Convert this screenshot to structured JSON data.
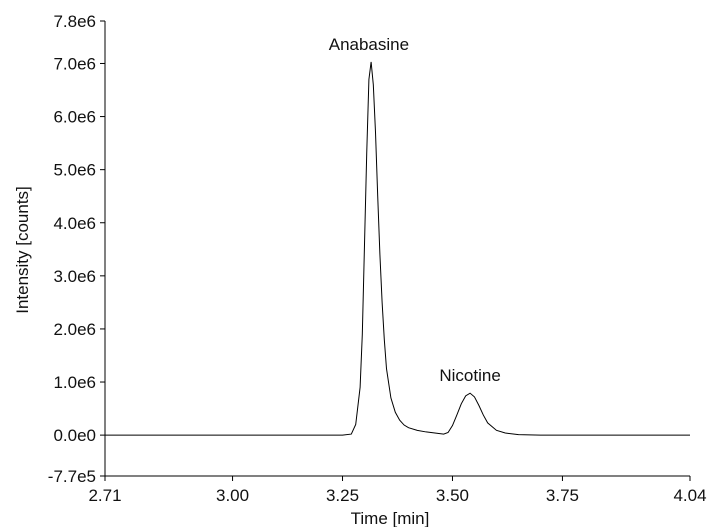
{
  "chart_data": {
    "type": "line",
    "title": "",
    "xlabel": "Time [min]",
    "ylabel": "Intensity [counts]",
    "xlim": [
      2.71,
      4.04
    ],
    "ylim": [
      -770000,
      7800000
    ],
    "xticks": [
      2.71,
      3.0,
      3.25,
      3.5,
      3.75,
      4.04
    ],
    "xtick_labels": [
      "2.71",
      "3.00",
      "3.25",
      "3.50",
      "3.75",
      "4.04"
    ],
    "yticks": [
      -770000,
      0,
      1000000,
      2000000,
      3000000,
      4000000,
      5000000,
      6000000,
      7000000,
      7800000
    ],
    "ytick_labels": [
      "-7.7e5",
      "0.0e0",
      "1.0e6",
      "2.0e6",
      "3.0e6",
      "4.0e6",
      "5.0e6",
      "6.0e6",
      "7.0e6",
      "7.8e6"
    ],
    "grid": false,
    "line_color": "#000000",
    "series": [
      {
        "x": [
          2.71,
          2.8,
          2.9,
          3.0,
          3.1,
          3.2,
          3.25,
          3.27,
          3.28,
          3.29,
          3.295,
          3.3,
          3.305,
          3.31,
          3.315,
          3.32,
          3.325,
          3.33,
          3.335,
          3.34,
          3.345,
          3.35,
          3.36,
          3.37,
          3.38,
          3.39,
          3.4,
          3.42,
          3.44,
          3.46,
          3.48,
          3.49,
          3.5,
          3.51,
          3.52,
          3.53,
          3.54,
          3.55,
          3.56,
          3.57,
          3.58,
          3.6,
          3.62,
          3.65,
          3.7,
          3.8,
          3.9,
          4.0,
          4.04
        ],
        "y": [
          0,
          0,
          0,
          0,
          0,
          0,
          0,
          20000,
          200000,
          900000,
          1900000,
          3600000,
          5300000,
          6700000,
          7030000,
          6600000,
          5700000,
          4500000,
          3400000,
          2500000,
          1800000,
          1250000,
          700000,
          430000,
          280000,
          190000,
          140000,
          90000,
          60000,
          40000,
          20000,
          50000,
          180000,
          380000,
          590000,
          740000,
          790000,
          720000,
          560000,
          380000,
          230000,
          90000,
          40000,
          10000,
          0,
          0,
          0,
          0,
          0
        ]
      }
    ],
    "annotations": [
      {
        "text": "Anabasine",
        "x": 3.31,
        "y": 7030000
      },
      {
        "text": "Nicotine",
        "x": 3.54,
        "y": 790000
      }
    ]
  }
}
